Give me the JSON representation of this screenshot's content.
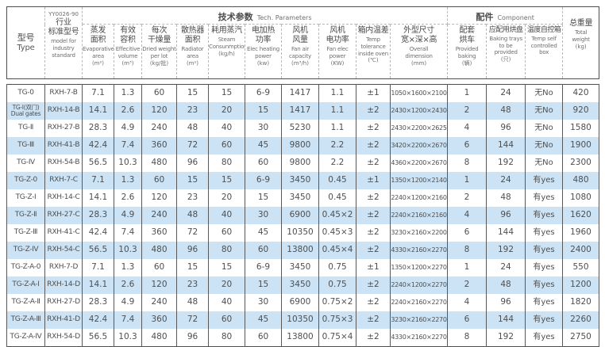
{
  "table": {
    "stripe_color": "#cbe3f5",
    "border_color": "#4f4f4f",
    "groups": {
      "tech": {
        "zh": "技术参数",
        "en": "Tech. Parameters"
      },
      "component": {
        "zh": "配件",
        "en": "Component"
      }
    },
    "columns": [
      {
        "zh": "型号",
        "en": "Type",
        "unit": ""
      },
      {
        "top": "YY0026-90",
        "zh": "行业\n标准型号",
        "en": "model for\nindustry\nstandard",
        "unit": ""
      },
      {
        "zh": "蒸发\n面积",
        "en": "Evaporative\narea",
        "unit": "(m²)"
      },
      {
        "zh": "有效\n容积",
        "en": "Effecitive\nvolume",
        "unit": "(m³)"
      },
      {
        "zh": "每次\n干燥量",
        "en": "Dried weight\nper lot",
        "unit": "(kg/批)"
      },
      {
        "zh": "散热器\n面积",
        "en": "Radiator\narea",
        "unit": "(m²)"
      },
      {
        "zh": "耗用蒸汽",
        "en": "Steam\nConsunmption",
        "unit": "(kg/h)"
      },
      {
        "zh": "电加热\n功率",
        "en": "Elec heating\npower",
        "unit": "(kw)"
      },
      {
        "zh": "风机\n风量",
        "en": "Fan air\ncapacity",
        "unit": "(m³/h)"
      },
      {
        "zh": "风机\n电功率",
        "en": "Fan elec\npower",
        "unit": "(KW)"
      },
      {
        "zh": "箱内温差",
        "en": "Temp\ntolerance\ninside oven",
        "unit": "(℃)"
      },
      {
        "zh": "外型尺寸\n宽×深×高",
        "en": "Overall\ndimension",
        "unit": "(mm)"
      },
      {
        "zh": "配套\n烘车",
        "en": "Provided\nbaking",
        "unit": "(辆)"
      },
      {
        "zh": "应配用烘盘",
        "en": "Baking trays\nto be\nprovided",
        "unit": "(只)"
      },
      {
        "zh": "温度自控箱",
        "en": "Temp self\ncontrolled\nbox",
        "unit": ""
      },
      {
        "zh": "总重量",
        "en": "Total\nweight",
        "unit": "(kg)"
      }
    ],
    "rows": [
      [
        "TG-0",
        "RXH-7-B",
        "7.1",
        "1.3",
        "60",
        "15",
        "15",
        "6-9",
        "1417",
        "1.1",
        "±1",
        "1050×1600×2100",
        "1",
        "24",
        "无No",
        "420"
      ],
      [
        "TG-Ⅰ(双门)\nDual gates",
        "RXH-14-B",
        "14.1",
        "2.6",
        "120",
        "23",
        "20",
        "15",
        "1417",
        "1.1",
        "±2",
        "2430×1200×2430",
        "2",
        "48",
        "无No",
        "920"
      ],
      [
        "TG-Ⅱ",
        "RXH-27-B",
        "28.3",
        "4.9",
        "240",
        "48",
        "40",
        "30",
        "5230",
        "1.1",
        "±2",
        "2430×2200×2625",
        "4",
        "96",
        "无No",
        "1580"
      ],
      [
        "TG-Ⅲ",
        "RXH-41-B",
        "42.4",
        "7.4",
        "360",
        "72",
        "60",
        "45",
        "9800",
        "2.2",
        "±2",
        "3420×2200×2670",
        "6",
        "144",
        "无No",
        "1900"
      ],
      [
        "TG-Ⅳ",
        "RXH-54-B",
        "56.5",
        "10.3",
        "480",
        "96",
        "80",
        "60",
        "9800",
        "2.2",
        "±2",
        "4360×2200×2670",
        "8",
        "192",
        "无No",
        "2300"
      ],
      [
        "TG-Z-0",
        "RXH-7-C",
        "7.1",
        "1.3",
        "60",
        "15",
        "15",
        "6-9",
        "3450",
        "0.45",
        "±1",
        "1350×1200×2140",
        "1",
        "24",
        "有yes",
        "480"
      ],
      [
        "TG-Z-Ⅰ",
        "RXH-14-C",
        "14.1",
        "2.6",
        "120",
        "23",
        "20",
        "15",
        "3450",
        "0.45",
        "±2",
        "2240×1200×2160",
        "2",
        "48",
        "有yes",
        "1080"
      ],
      [
        "TG-Z-Ⅱ",
        "RXH-27-C",
        "28.3",
        "4.9",
        "240",
        "48",
        "40",
        "30",
        "6900",
        "0.45×2",
        "±2",
        "2240×2160×2160",
        "4",
        "96",
        "有yes",
        "1620"
      ],
      [
        "TG-Z-Ⅲ",
        "RXH-41-C",
        "42.4",
        "7.4",
        "360",
        "72",
        "60",
        "45",
        "10350",
        "0.45×3",
        "±2",
        "3230×2160×2200",
        "6",
        "144",
        "有yes",
        "1960"
      ],
      [
        "TG-Z-Ⅳ",
        "RXH-54-C",
        "56.5",
        "10.3",
        "480",
        "96",
        "80",
        "60",
        "13800",
        "0.45×4",
        "±2",
        "4330×2160×2270",
        "8",
        "192",
        "有yes",
        "2400"
      ],
      [
        "TG-Z-A-0",
        "RXH-7-D",
        "7.1",
        "1.3",
        "60",
        "15",
        "15",
        "6-9",
        "3450",
        "0.75",
        "±1",
        "1350×1200×2270",
        "1",
        "24",
        "有yes",
        "550"
      ],
      [
        "TG-Z-A-Ⅰ",
        "RXH-14-D",
        "14.1",
        "2.6",
        "120",
        "23",
        "20",
        "15",
        "3450",
        "0.75",
        "±2",
        "2240×1200×2270",
        "2",
        "48",
        "有yes",
        "1200"
      ],
      [
        "TG-Z-A-Ⅱ",
        "RXH-27-D",
        "28.3",
        "4.9",
        "240",
        "48",
        "40",
        "30",
        "6900",
        "0.75×2",
        "±2",
        "2240×2160×2270",
        "4",
        "96",
        "有yes",
        "1820"
      ],
      [
        "TG-Z-A-Ⅲ",
        "RXH-41-D",
        "42.4",
        "7.4",
        "360",
        "72",
        "60",
        "45",
        "10350",
        "0.75×3",
        "±2",
        "3230×2160×2270",
        "6",
        "144",
        "有yes",
        "2260"
      ],
      [
        "TG-Z-A-Ⅳ",
        "RXH-54-D",
        "56.5",
        "10.3",
        "480",
        "96",
        "80",
        "60",
        "13800",
        "0.75×4",
        "±2",
        "4330×2160×2270",
        "8",
        "192",
        "有yes",
        "2750"
      ]
    ]
  }
}
